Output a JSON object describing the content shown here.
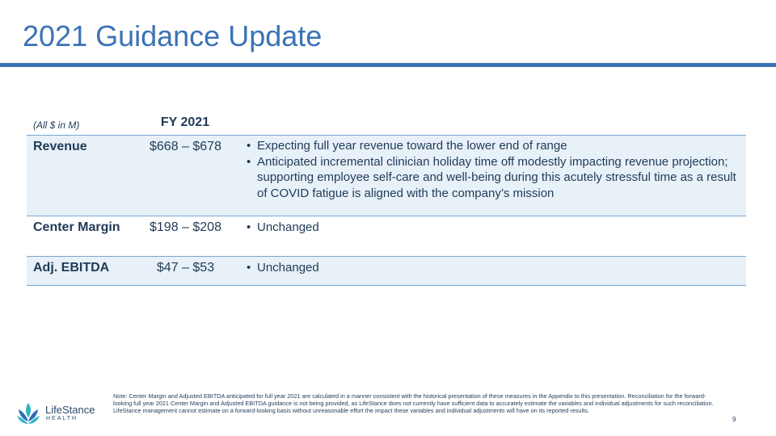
{
  "slide": {
    "title": "2021 Guidance Update",
    "page_number": "9"
  },
  "table": {
    "unit_label": "(All $ in M)",
    "column_header": "FY 2021",
    "rows": [
      {
        "metric": "Revenue",
        "range": "$668 – $678",
        "bullets": [
          "Expecting full year revenue toward the lower end of range",
          "Anticipated incremental clinician holiday time off modestly impacting revenue projection; supporting employee self-care and well-being during this acutely stressful time as a result of COVID fatigue is aligned with the company’s mission"
        ]
      },
      {
        "metric": "Center Margin",
        "range": "$198 – $208",
        "bullets": [
          "Unchanged"
        ]
      },
      {
        "metric": "Adj. EBITDA",
        "range": "$47 – $53",
        "bullets": [
          "Unchanged"
        ]
      }
    ]
  },
  "footer": {
    "logo_name": "LifeStance",
    "logo_sub": "HEALTH",
    "note": "Note:  Center Margin and Adjusted EBITDA anticipated for full year 2021 are calculated in a manner consistent with the historical presentation of these measures in the Appendix to this presentation. Reconciliation for the forward-looking full year 2021 Center Margin and Adjusted EBITDA guidance is not being provided, as LifeStance does not currently have sufficient data to accurately estimate the variables and individual adjustments for such reconciliation. LifeStance management cannot estimate on a forward-looking basis without unreasonable effort the impact these variables and individual adjustments will have on its reported results."
  },
  "colors": {
    "title_blue": "#3a73b5",
    "row_shade": "#e8f0f8",
    "logo_teal": "#2bb5c8",
    "logo_blue": "#2f6db5"
  }
}
